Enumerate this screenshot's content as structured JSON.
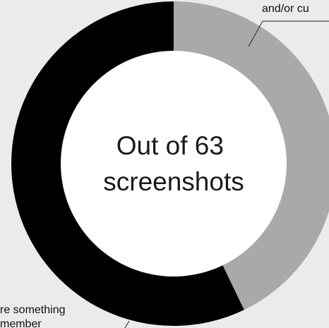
{
  "chart_data": {
    "type": "pie",
    "variant": "donut",
    "total_label_lines": [
      "Out of 63",
      "screenshots"
    ],
    "slices": [
      {
        "value": 27,
        "color": "#a8a9ab",
        "label_lines": [
          "and/or cu"
        ]
      },
      {
        "value": 36,
        "color": "#000000",
        "label_lines": [
          "re something",
          "member"
        ]
      }
    ]
  }
}
